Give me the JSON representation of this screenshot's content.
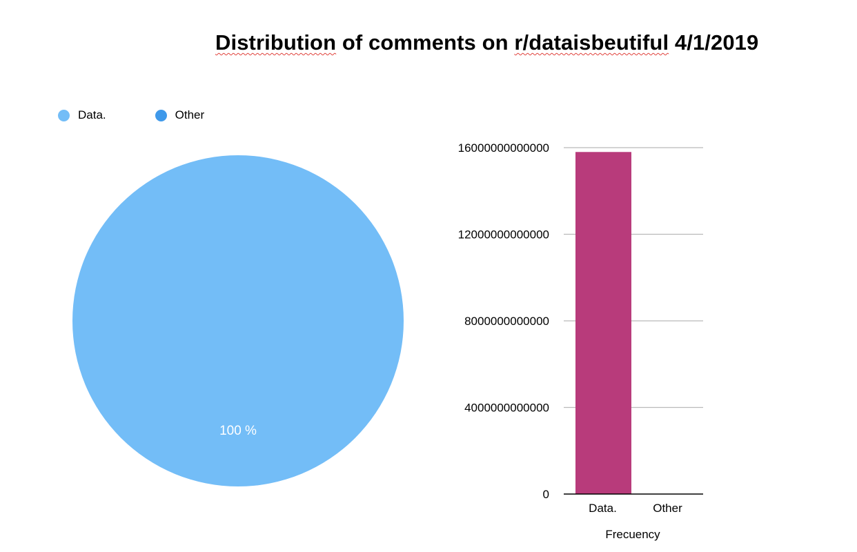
{
  "title_parts": {
    "w1": "Distribution",
    "w2": "of comments on",
    "w3": "r/dataisbeutiful",
    "w4": "4/1/2019"
  },
  "colors": {
    "data": "#73bdf7",
    "other": "#3f99ea",
    "bar": "#b83b7b",
    "grid": "#b9b9b9",
    "axis": "#000000"
  },
  "chart_data": [
    {
      "type": "pie",
      "title": "Distribution of comments on r/dataisbeutiful 4/1/2019",
      "legend": [
        "Data.",
        "Other"
      ],
      "legend_placement": "top-left",
      "slices": [
        {
          "label": "Data.",
          "value": 100,
          "display": "100 %"
        },
        {
          "label": "Other",
          "value": 0
        }
      ]
    },
    {
      "type": "bar",
      "categories": [
        "Data.",
        "Other"
      ],
      "values": [
        15800000000000,
        0
      ],
      "xlabel": "Frecuency",
      "ylabel": "",
      "ylim": [
        0,
        16000000000000
      ],
      "yticks": [
        0,
        4000000000000,
        8000000000000,
        12000000000000,
        16000000000000
      ],
      "ytick_labels": [
        "0",
        "4000000000000",
        "8000000000000",
        "12000000000000",
        "16000000000000"
      ],
      "grid": true
    }
  ]
}
